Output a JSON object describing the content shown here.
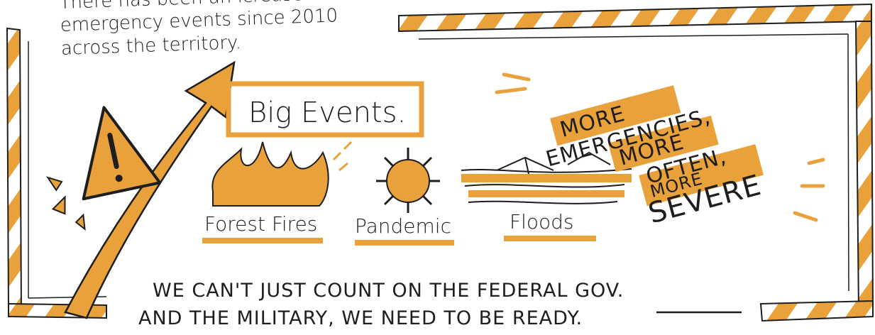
{
  "intro": {
    "lines": [
      "There has been an icrease in",
      "emergency events since 2010",
      "across the territory."
    ]
  },
  "heading": "Big Events.",
  "events": [
    "Forest Fires",
    "Pandemic",
    "Floods"
  ],
  "callout": {
    "lines": [
      "MORE",
      "EMERGENCIES,",
      "MORE",
      "OFTEN,",
      "MORE",
      "SEVERE"
    ]
  },
  "footer": {
    "lines": [
      "WE CAN'T JUST COUNT ON THE FEDERAL GOV.",
      "AND THE MILITARY, WE NEED TO BE READY."
    ]
  }
}
